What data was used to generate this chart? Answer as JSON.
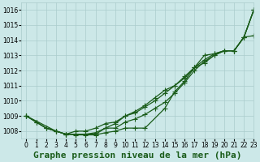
{
  "background_color": "#cce8e8",
  "grid_color": "#aacccc",
  "line_color": "#1a5c1a",
  "title": "Graphe pression niveau de la mer (hPa)",
  "xlim": [
    -0.5,
    23
  ],
  "ylim": [
    1007.5,
    1016.5
  ],
  "yticks": [
    1008,
    1009,
    1010,
    1011,
    1012,
    1013,
    1014,
    1015,
    1016
  ],
  "xticks": [
    0,
    1,
    2,
    3,
    4,
    5,
    6,
    7,
    8,
    9,
    10,
    11,
    12,
    13,
    14,
    15,
    16,
    17,
    18,
    19,
    20,
    21,
    22,
    23
  ],
  "series": [
    {
      "x": [
        0,
        1,
        2,
        3,
        4,
        5,
        6,
        7,
        8,
        9,
        10,
        11,
        12,
        13,
        14,
        15,
        16,
        17,
        18,
        19,
        20,
        21,
        22,
        23
      ],
      "y": [
        1009.0,
        1008.6,
        1008.2,
        1008.0,
        1007.8,
        1007.8,
        1007.8,
        1007.8,
        1008.2,
        1008.2,
        1008.6,
        1008.8,
        1009.1,
        1009.5,
        1009.9,
        1010.5,
        1011.2,
        1012.0,
        1012.6,
        1013.0,
        1013.3,
        1013.3,
        1014.2,
        1016.0
      ],
      "has_marker": true
    },
    {
      "x": [
        0,
        1,
        2,
        3,
        4,
        5,
        6,
        7,
        8,
        9,
        10,
        11,
        12,
        13,
        14,
        15,
        16,
        17,
        18,
        19,
        20,
        21,
        22,
        23
      ],
      "y": [
        1009.0,
        1008.6,
        1008.2,
        1008.0,
        1007.8,
        1007.8,
        1007.8,
        1007.9,
        1008.2,
        1008.5,
        1009.0,
        1009.2,
        1009.6,
        1010.0,
        1010.5,
        1011.0,
        1011.5,
        1012.2,
        1012.7,
        1013.1,
        1013.3,
        1013.3,
        1014.2,
        1016.0
      ],
      "has_marker": true
    },
    {
      "x": [
        0,
        1,
        2,
        3,
        4,
        5,
        6,
        7,
        8,
        9,
        10,
        11,
        12,
        13,
        14,
        15,
        16,
        17,
        18,
        19,
        20,
        21,
        22,
        23
      ],
      "y": [
        1009.0,
        1008.6,
        1008.2,
        1008.0,
        1007.8,
        1008.0,
        1008.0,
        1008.2,
        1008.5,
        1008.6,
        1009.0,
        1009.3,
        1009.7,
        1010.2,
        1010.7,
        1011.0,
        1011.6,
        1012.2,
        1012.5,
        1013.0,
        1013.3,
        1013.3,
        1014.2,
        1016.0
      ],
      "has_marker": true
    },
    {
      "x": [
        0,
        3,
        4,
        5,
        6,
        7,
        8,
        9,
        10,
        11,
        12,
        14,
        15,
        16,
        17,
        18,
        19,
        20,
        21,
        22,
        23
      ],
      "y": [
        1009.0,
        1008.0,
        1007.8,
        1007.75,
        1007.75,
        1007.75,
        1007.9,
        1008.0,
        1008.2,
        1008.2,
        1008.2,
        1009.5,
        1010.6,
        1011.3,
        1012.2,
        1013.0,
        1013.1,
        1013.3,
        1013.3,
        1014.2,
        1014.3
      ],
      "has_marker": true
    }
  ],
  "marker": "+",
  "markersize": 4,
  "linewidth": 0.9,
  "title_fontsize": 8,
  "tick_fontsize": 5.5
}
